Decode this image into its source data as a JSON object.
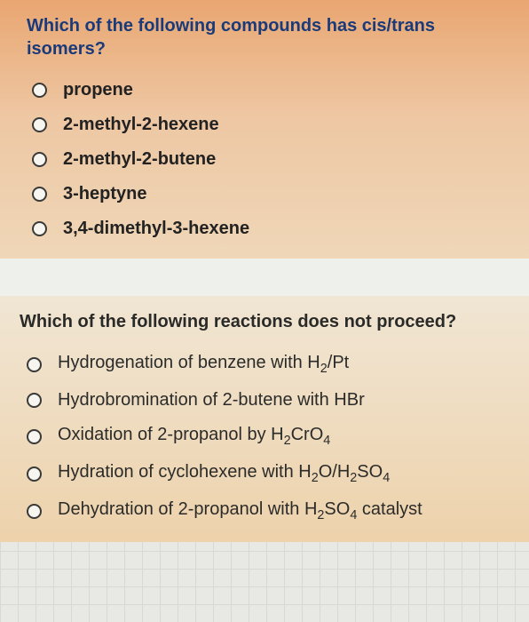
{
  "q1": {
    "background_gradient": [
      "#e9a671",
      "#eec7a3",
      "#efd7b8"
    ],
    "question_color": "#1a3a7a",
    "question_fontsize": 20,
    "question_weight": "bold",
    "question": "Which of the following compounds has cis/trans isomers?",
    "options": [
      {
        "label": "propene"
      },
      {
        "label": "2-methyl-2-hexene"
      },
      {
        "label": "2-methyl-2-butene"
      },
      {
        "label": "3-heptyne"
      },
      {
        "label": "3,4-dimethyl-3-hexene"
      }
    ],
    "option_fontsize": 20,
    "option_weight": "bold",
    "option_color": "#222222",
    "radio_border_color": "#3a3a38",
    "radio_fill": "#f7f5ef"
  },
  "q2": {
    "background_gradient": [
      "#f0e6d4",
      "#efdcc0",
      "#edd2ab"
    ],
    "question_color": "#2a2a28",
    "question_fontsize": 20,
    "question_weight": "bold",
    "question": "Which of the following reactions does not proceed?",
    "options": [
      {
        "label_html": "Hydrogenation of benzene with H<sub>2</sub>/Pt"
      },
      {
        "label_html": "Hydrobromination of 2-butene with HBr"
      },
      {
        "label_html": "Oxidation of 2-propanol by H<sub>2</sub>CrO<sub>4</sub>"
      },
      {
        "label_html": "Hydration of cyclohexene with H<sub>2</sub>O/H<sub>2</sub>SO<sub>4</sub>"
      },
      {
        "label_html": "Dehydration of 2-propanol with H<sub>2</sub>SO<sub>4</sub> catalyst"
      }
    ],
    "option_fontsize": 20,
    "option_weight": "normal",
    "option_color": "#2b2b29",
    "radio_border_color": "#3a3a38",
    "radio_fill": "#f7f5ef"
  },
  "divider_color": "#eef0ec",
  "page_bg": "#e8e8e4"
}
